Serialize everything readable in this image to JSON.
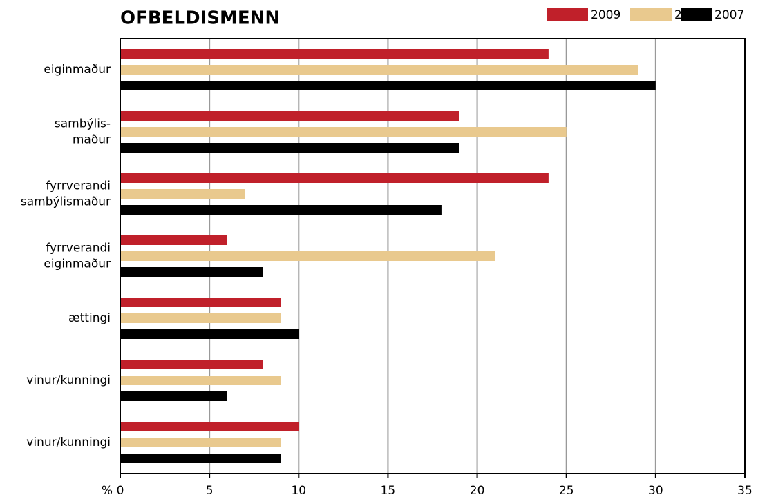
{
  "chart_data": {
    "type": "barh",
    "title": "OFBELDISMENN",
    "xlabel": "%",
    "categories": [
      [
        "eiginmaður"
      ],
      [
        "sambýlis-",
        "maður"
      ],
      [
        "fyrrverandi",
        "sambýlismaður"
      ],
      [
        "fyrrverandi",
        "eiginmaður"
      ],
      [
        "ættingi"
      ],
      [
        "vinur/kunningi"
      ],
      [
        "vinur/kunningi"
      ]
    ],
    "series": [
      {
        "name": "2009",
        "color": "#c0202a",
        "values": [
          24,
          19,
          24,
          6,
          9,
          8,
          10
        ]
      },
      {
        "name": "2008",
        "color": "#e9c98e",
        "values": [
          29,
          25,
          7,
          21,
          9,
          9,
          9
        ]
      },
      {
        "name": "2007",
        "color": "#000000",
        "values": [
          30,
          19,
          18,
          8,
          10,
          6,
          9
        ]
      }
    ],
    "xlim": [
      0,
      35
    ],
    "xticks": [
      0,
      5,
      10,
      15,
      20,
      25,
      30,
      35
    ],
    "grid": true,
    "legend": "top right"
  }
}
